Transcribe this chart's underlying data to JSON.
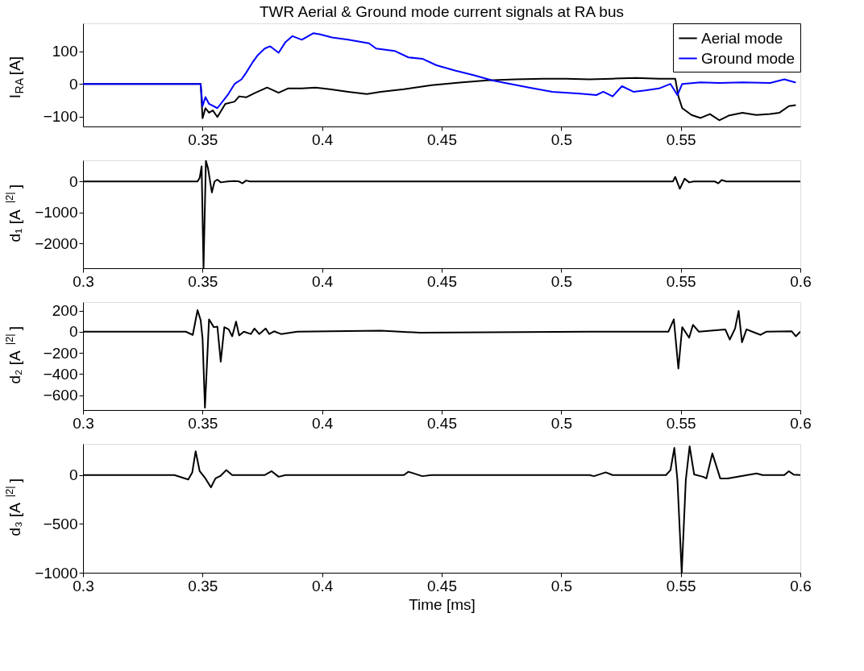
{
  "chart_data": [
    {
      "type": "line",
      "title": "TWR Aerial & Ground mode current signals at RA bus",
      "ylabel": "I$_{RA}$ [A]",
      "xlim": [
        0.3,
        0.6
      ],
      "xticks": [
        0.35,
        0.4,
        0.45,
        0.5,
        0.55
      ],
      "ylim": [
        -130,
        185
      ],
      "yticks": [
        -100,
        0,
        100
      ],
      "grid": false,
      "legend": "top right",
      "series": [
        {
          "name": "Aerial  mode",
          "color": "#000000",
          "x": [
            0.3,
            0.3492,
            0.35,
            0.3512,
            0.3527,
            0.3543,
            0.3562,
            0.3595,
            0.3634,
            0.3653,
            0.3682,
            0.3721,
            0.377,
            0.3818,
            0.3857,
            0.3915,
            0.3973,
            0.4032,
            0.4109,
            0.4187,
            0.4245,
            0.4342,
            0.4458,
            0.4575,
            0.4691,
            0.4807,
            0.4924,
            0.5021,
            0.5118,
            0.5215,
            0.5312,
            0.5409,
            0.5477,
            0.549,
            0.5506,
            0.5545,
            0.5583,
            0.5622,
            0.5661,
            0.57,
            0.5758,
            0.5816,
            0.5874,
            0.5913,
            0.5952,
            0.5981
          ],
          "values": [
            0,
            0,
            -105,
            -74,
            -88,
            -81,
            -101,
            -61,
            -54,
            -38,
            -41,
            -27,
            -11,
            -27,
            -14,
            -14,
            -11,
            -16,
            -24,
            -31,
            -24,
            -16,
            -4,
            4,
            11,
            14,
            16,
            16,
            14,
            16,
            18,
            16,
            16,
            -38,
            -74,
            -95,
            -104,
            -92,
            -111,
            -97,
            -88,
            -95,
            -92,
            -88,
            -68,
            -65
          ]
        },
        {
          "name": "Ground mode",
          "color": "#0000ff",
          "x": [
            0.3,
            0.3492,
            0.35,
            0.3512,
            0.3527,
            0.3562,
            0.3605,
            0.3634,
            0.3663,
            0.3682,
            0.3711,
            0.3731,
            0.376,
            0.3783,
            0.3818,
            0.3847,
            0.3876,
            0.3915,
            0.3964,
            0.3993,
            0.4041,
            0.4109,
            0.4167,
            0.4196,
            0.4226,
            0.4303,
            0.4361,
            0.4419,
            0.4478,
            0.4555,
            0.4633,
            0.4711,
            0.4788,
            0.4866,
            0.4963,
            0.5079,
            0.5147,
            0.5176,
            0.5215,
            0.5254,
            0.5302,
            0.5351,
            0.5409,
            0.5457,
            0.5486,
            0.5506,
            0.5583,
            0.5661,
            0.5758,
            0.5874,
            0.5933,
            0.5981
          ],
          "values": [
            0,
            0,
            -68,
            -40,
            -61,
            -74,
            -34,
            0,
            14,
            34,
            68,
            88,
            108,
            115,
            95,
            128,
            146,
            135,
            155,
            151,
            142,
            135,
            128,
            124,
            108,
            101,
            81,
            77,
            57,
            41,
            27,
            11,
            0,
            -11,
            -24,
            -30,
            -34,
            -24,
            -38,
            -7,
            -24,
            -20,
            -14,
            0,
            -34,
            0,
            5,
            3,
            5,
            3,
            14,
            4
          ]
        }
      ]
    },
    {
      "type": "line",
      "ylabel": "d₁ [A$^{|2|}$]",
      "xlim": [
        0.3,
        0.6
      ],
      "xticks": [
        0.3,
        0.35,
        0.4,
        0.45,
        0.5,
        0.55,
        0.6
      ],
      "ylim": [
        -2790,
        680
      ],
      "yticks": [
        -2000,
        -1000,
        0
      ],
      "grid": false,
      "series": [
        {
          "color": "#000000",
          "x": [
            0.3,
            0.3479,
            0.3488,
            0.3496,
            0.3504,
            0.3514,
            0.3523,
            0.3539,
            0.355,
            0.3562,
            0.3576,
            0.3605,
            0.3634,
            0.3653,
            0.3667,
            0.3682,
            0.3698,
            0.5467,
            0.5477,
            0.5496,
            0.5516,
            0.5535,
            0.5554,
            0.5642,
            0.5657,
            0.5671,
            0.569,
            0.6
          ],
          "values": [
            0,
            0,
            118,
            485,
            -2780,
            670,
            412,
            -353,
            0,
            59,
            -29,
            0,
            15,
            0,
            -59,
            29,
            0,
            0,
            147,
            -235,
            88,
            -29,
            0,
            0,
            -59,
            44,
            0,
            0
          ]
        }
      ]
    },
    {
      "type": "line",
      "ylabel": "d₂ [A$^{|2|}$]",
      "xlim": [
        0.3,
        0.6
      ],
      "xticks": [
        0.3,
        0.35,
        0.4,
        0.45,
        0.5,
        0.55,
        0.6
      ],
      "ylim": [
        -740,
        280
      ],
      "yticks": [
        -600,
        -400,
        -200,
        0,
        200
      ],
      "grid": false,
      "series": [
        {
          "color": "#000000",
          "x": [
            0.3,
            0.343,
            0.3459,
            0.3479,
            0.3492,
            0.35,
            0.351,
            0.3527,
            0.3547,
            0.3562,
            0.3576,
            0.3591,
            0.3609,
            0.3624,
            0.364,
            0.3653,
            0.3673,
            0.3702,
            0.3717,
            0.3737,
            0.3764,
            0.3779,
            0.3799,
            0.3828,
            0.3896,
            0.4245,
            0.441,
            0.5118,
            0.5448,
            0.5471,
            0.549,
            0.5506,
            0.5535,
            0.5551,
            0.5576,
            0.5686,
            0.5705,
            0.5727,
            0.5742,
            0.5756,
            0.5775,
            0.5799,
            0.5834,
            0.5857,
            0.5964,
            0.5981,
            0.6
          ],
          "values": [
            0,
            0,
            -30,
            204,
            109,
            -65,
            -718,
            117,
            43,
            48,
            -283,
            43,
            22,
            -43,
            96,
            -35,
            0,
            -22,
            30,
            -22,
            30,
            -22,
            4,
            -22,
            0,
            9,
            -9,
            0,
            0,
            117,
            -348,
            43,
            -57,
            65,
            0,
            22,
            -74,
            30,
            196,
            -100,
            22,
            0,
            -30,
            0,
            4,
            -43,
            0
          ]
        }
      ]
    },
    {
      "type": "line",
      "ylabel": "d₃ [A$^{|2|}$]",
      "xlabel": "Time [ms]",
      "xlim": [
        0.3,
        0.6
      ],
      "xticks": [
        0.3,
        0.35,
        0.4,
        0.45,
        0.5,
        0.55,
        0.6
      ],
      "ylim": [
        -1000,
        320
      ],
      "yticks": [
        -1000,
        -500,
        0
      ],
      "grid": false,
      "series": [
        {
          "color": "#000000",
          "x": [
            0.3,
            0.3382,
            0.344,
            0.3457,
            0.3471,
            0.3488,
            0.3512,
            0.3535,
            0.3554,
            0.3576,
            0.3599,
            0.3624,
            0.3759,
            0.3789,
            0.3818,
            0.3847,
            0.4342,
            0.4361,
            0.4419,
            0.4458,
            0.5118,
            0.5137,
            0.5186,
            0.5215,
            0.5438,
            0.5457,
            0.5473,
            0.5486,
            0.5504,
            0.5521,
            0.5537,
            0.5556,
            0.5593,
            0.5607,
            0.5632,
            0.5665,
            0.5696,
            0.5778,
            0.5817,
            0.5842,
            0.5933,
            0.5952,
            0.5972,
            0.6
          ],
          "values": [
            0,
            0,
            -45,
            28,
            244,
            40,
            -34,
            -125,
            -34,
            -6,
            51,
            0,
            0,
            40,
            -17,
            0,
            0,
            34,
            -11,
            0,
            0,
            -11,
            28,
            0,
            0,
            51,
            278,
            -51,
            -1000,
            -51,
            295,
            6,
            -17,
            -34,
            222,
            -34,
            -34,
            0,
            17,
            0,
            0,
            40,
            5,
            0
          ]
        }
      ]
    }
  ]
}
